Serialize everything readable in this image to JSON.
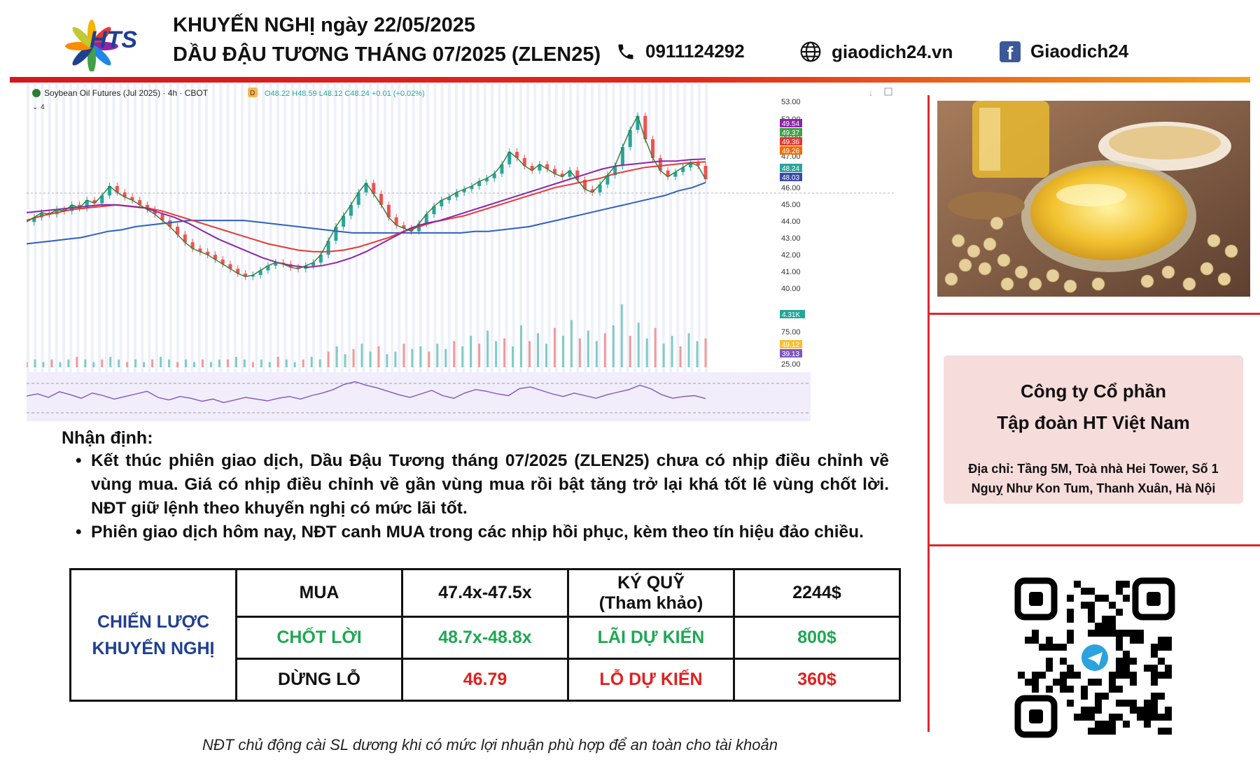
{
  "brand": {
    "logo_text": "HTS",
    "colors": {
      "red": "#d8292f",
      "navy": "#1f3f8f",
      "green": "#1fa853"
    }
  },
  "header": {
    "title_line1": "KHUYẾN NGHỊ ngày 22/05/2025",
    "title_line2": "DẦU ĐẬU TƯƠNG THÁNG 07/2025 (ZLEN25)",
    "phone": "0911124292",
    "website": "giaodich24.vn",
    "facebook": "Giaodich24",
    "icons": [
      "phone-icon",
      "globe-icon",
      "facebook-icon"
    ]
  },
  "chart_data": {
    "type": "line",
    "title": "Soybean Oil Futures (Jul 2025) · 4h · CBOT",
    "ohlc_readout": "O48.22 H48.59 L48.12 C48.24 +0.01 (+0.02%)",
    "interval_badge": "D",
    "collapse_label": "4",
    "y_ticks": [
      "53.00",
      "52.00",
      "50.00",
      "47.00",
      "46.00",
      "45.00",
      "44.00",
      "43.00",
      "42.00",
      "41.00",
      "40.00"
    ],
    "price_tags": [
      {
        "value": "49.54",
        "color": "#8e24aa"
      },
      {
        "value": "49.37",
        "color": "#43a047"
      },
      {
        "value": "49.36",
        "color": "#e53935"
      },
      {
        "value": "49.26",
        "color": "#ef6c00"
      },
      {
        "value": "48.24",
        "color": "#26a69a"
      },
      {
        "value": "48.03",
        "color": "#3949ab"
      }
    ],
    "volume_tag": "4.31K",
    "oscillator_ticks": [
      "75.00",
      "25.00"
    ],
    "oscillator_tags": [
      {
        "value": "49.12",
        "color": "#fbc02d"
      },
      {
        "value": "39.13",
        "color": "#7e57c2"
      }
    ],
    "ylim": [
      40,
      53
    ],
    "price_series": [
      45.5,
      45.8,
      46.1,
      46.0,
      46.3,
      46.2,
      46.6,
      46.4,
      46.9,
      46.7,
      47.2,
      47.8,
      47.4,
      47.1,
      46.9,
      46.6,
      46.3,
      46.0,
      45.6,
      45.2,
      44.7,
      44.2,
      43.8,
      43.6,
      43.4,
      43.1,
      42.8,
      42.5,
      42.2,
      42.0,
      42.1,
      42.4,
      42.7,
      42.9,
      42.8,
      42.6,
      42.5,
      42.7,
      42.9,
      43.4,
      44.3,
      45.2,
      45.9,
      46.6,
      47.4,
      48.0,
      47.3,
      46.6,
      45.8,
      45.3,
      45.1,
      44.9,
      45.4,
      46.0,
      46.5,
      46.9,
      47.1,
      47.4,
      47.6,
      47.8,
      48.1,
      48.3,
      48.6,
      49.2,
      50.0,
      49.6,
      49.1,
      48.8,
      49.2,
      48.9,
      48.6,
      48.4,
      48.8,
      48.2,
      47.6,
      47.4,
      47.9,
      48.5,
      49.1,
      50.3,
      51.4,
      52.3,
      50.8,
      49.6,
      48.8,
      48.4,
      48.7,
      49.0,
      49.3,
      49.1,
      48.24
    ],
    "ma_blue": [
      44.1,
      44.2,
      44.3,
      44.4,
      44.5,
      44.7,
      44.9,
      45.0,
      45.2,
      45.3,
      45.4,
      45.5,
      45.6,
      45.6,
      45.6,
      45.6,
      45.6,
      45.5,
      45.4,
      45.3,
      45.2,
      45.1,
      45.0,
      44.9,
      44.8,
      44.8,
      44.8,
      44.8,
      44.8,
      44.8,
      44.8,
      44.8,
      44.8,
      44.9,
      44.9,
      45.0,
      45.1,
      45.2,
      45.4,
      45.6,
      45.8,
      46.0,
      46.2,
      46.4,
      46.6,
      46.8,
      47.0,
      47.2,
      47.5,
      47.7,
      48.03
    ],
    "ma_purple": [
      46.1,
      46.2,
      46.3,
      46.4,
      46.5,
      46.6,
      46.6,
      46.5,
      46.4,
      46.1,
      45.8,
      45.4,
      44.9,
      44.4,
      44.0,
      43.6,
      43.2,
      42.9,
      42.7,
      42.6,
      42.7,
      42.9,
      43.2,
      43.6,
      44.1,
      44.6,
      45.1,
      45.4,
      45.6,
      45.9,
      46.2,
      46.5,
      46.8,
      47.1,
      47.4,
      47.7,
      48.0,
      48.3,
      48.6,
      48.9,
      49.1,
      49.2,
      49.3,
      49.4,
      49.4,
      49.5,
      49.54
    ],
    "ma_red": [
      45.6,
      45.9,
      46.1,
      46.3,
      46.4,
      46.5,
      46.6,
      46.5,
      46.4,
      46.2,
      45.9,
      45.6,
      45.3,
      45.0,
      44.7,
      44.4,
      44.1,
      43.9,
      43.7,
      43.6,
      43.6,
      43.7,
      43.9,
      44.2,
      44.5,
      44.9,
      45.2,
      45.5,
      45.7,
      45.9,
      46.2,
      46.5,
      46.8,
      47.1,
      47.4,
      47.7,
      47.9,
      48.1,
      48.3,
      48.6,
      48.8,
      49.0,
      49.1,
      49.2,
      49.3,
      49.36
    ],
    "volumes": [
      2,
      3,
      2,
      3,
      2,
      3,
      4,
      3,
      2,
      3,
      4,
      3,
      2,
      3,
      2,
      3,
      4,
      3,
      2,
      3,
      2,
      3,
      2,
      3,
      3,
      4,
      3,
      2,
      3,
      2,
      4,
      3,
      2,
      3,
      4,
      3,
      6,
      8,
      5,
      7,
      9,
      6,
      8,
      5,
      6,
      9,
      7,
      8,
      6,
      9,
      7,
      10,
      8,
      12,
      9,
      14,
      10,
      11,
      8,
      16,
      10,
      13,
      9,
      15,
      12,
      18,
      11,
      14,
      10,
      13,
      16,
      24,
      12,
      17,
      11,
      15,
      9,
      12,
      8,
      13,
      10,
      11
    ],
    "oscillator": [
      45,
      50,
      42,
      55,
      48,
      40,
      52,
      46,
      38,
      44,
      50,
      56,
      42,
      36,
      44,
      40,
      33,
      38,
      30,
      36,
      42,
      38,
      34,
      40,
      44,
      38,
      46,
      52,
      60,
      72,
      78,
      70,
      64,
      56,
      48,
      42,
      50,
      58,
      46,
      40,
      52,
      60,
      56,
      50,
      46,
      62,
      66,
      58,
      50,
      44,
      52,
      46,
      40,
      48,
      54,
      60,
      70,
      62,
      48,
      40,
      44,
      46,
      39.13
    ]
  },
  "photo": {
    "alt": "Soybean oil and soybeans"
  },
  "company": {
    "name_line1": "Công ty Cổ phần",
    "name_line2": "Tập đoàn HT Việt Nam",
    "address": "Địa chỉ: Tầng 5M, Toà nhà Hei Tower, Số 1 Nguỵ Như Kon Tum, Thanh Xuân, Hà Nội"
  },
  "analysis": {
    "title": "Nhận định:",
    "points": [
      "Kết thúc phiên giao dịch, Dầu Đậu Tương tháng 07/2025 (ZLEN25) chưa có nhịp điều chỉnh về vùng mua. Giá có nhịp điều chỉnh về gần vùng mua rồi bật tăng trở lại khá tốt lê vùng chốt lời. NĐT giữ lệnh theo khuyến nghị có mức lãi tốt.",
      "Phiên giao dịch hôm nay, NĐT canh MUA trong các nhịp hồi phục, kèm theo tín hiệu đảo chiều."
    ]
  },
  "strategy": {
    "label_line1": "CHIẾN LƯỢC",
    "label_line2": "KHUYẾN NGHỊ",
    "rows": [
      {
        "name": "MUA",
        "value": "47.4x-47.5x",
        "metric_line1": "KÝ QUỸ",
        "metric_line2": "(Tham khảo)",
        "amount": "2244$"
      },
      {
        "name": "CHỐT LỜI",
        "value": "48.7x-48.8x",
        "metric_line1": "LÃI DỰ KIẾN",
        "metric_line2": "",
        "amount": "800$"
      },
      {
        "name": "DỪNG LỖ",
        "value": "46.79",
        "metric_line1": "LỖ DỰ KIẾN",
        "metric_line2": "",
        "amount": "360$"
      }
    ]
  },
  "footnote": "NĐT chủ động cài SL dương khi có mức lợi nhuận phù hợp để an toàn cho tài khoản"
}
